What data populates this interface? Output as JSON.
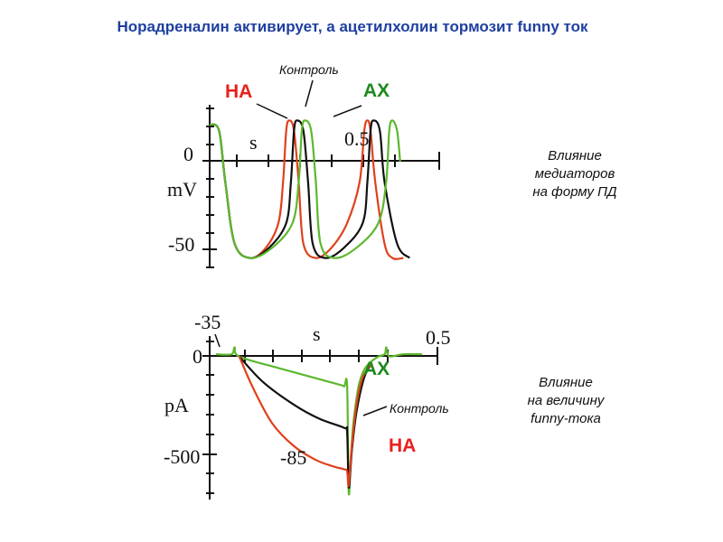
{
  "title": "Норадреналин активирует, а ацетилхолин тормозит funny ток",
  "colors": {
    "title": "#1f3fa0",
    "control": "#111111",
    "na": "#e0401c",
    "ach": "#5cb82e",
    "label_na": "#e8201c",
    "label_ach": "#1d8a1d"
  },
  "chart_data": [
    {
      "type": "line",
      "name": "action-potential",
      "xlabel": "s",
      "ylabel": "mV",
      "x_tick_label": "0.5",
      "y_tick_labels": [
        "0",
        "-50"
      ],
      "xlim": [
        0,
        0.68
      ],
      "ylim": [
        -62,
        15
      ],
      "labels": {
        "control": "Контроль",
        "na": "НА",
        "ach": "АХ"
      },
      "series": [
        {
          "key": "na",
          "x": [
            0.0,
            0.03,
            0.05,
            0.08,
            0.13,
            0.18,
            0.22,
            0.235,
            0.245,
            0.255,
            0.27,
            0.285,
            0.3,
            0.34,
            0.39,
            0.44,
            0.48,
            0.495,
            0.505,
            0.515,
            0.53,
            0.56,
            0.585,
            0.62
          ],
          "y": [
            8,
            5,
            -20,
            -50,
            -57,
            -52,
            -40,
            -20,
            5,
            10,
            5,
            -20,
            -50,
            -57,
            -52,
            -40,
            -20,
            5,
            10,
            5,
            -20,
            -50,
            -57,
            -57
          ]
        },
        {
          "key": "control",
          "x": [
            0.0,
            0.03,
            0.05,
            0.08,
            0.13,
            0.19,
            0.245,
            0.26,
            0.27,
            0.28,
            0.3,
            0.315,
            0.33,
            0.37,
            0.43,
            0.49,
            0.505,
            0.515,
            0.525,
            0.545,
            0.56,
            0.6,
            0.64
          ],
          "y": [
            8,
            5,
            -20,
            -50,
            -57,
            -52,
            -40,
            -20,
            5,
            10,
            5,
            -20,
            -50,
            -57,
            -52,
            -40,
            -20,
            5,
            10,
            5,
            -20,
            -50,
            -57
          ]
        },
        {
          "key": "ach",
          "x": [
            0.0,
            0.03,
            0.05,
            0.08,
            0.13,
            0.2,
            0.265,
            0.285,
            0.295,
            0.305,
            0.325,
            0.34,
            0.355,
            0.4,
            0.47,
            0.54,
            0.565,
            0.575,
            0.585,
            0.6,
            0.61
          ],
          "y": [
            8,
            5,
            -20,
            -50,
            -57,
            -52,
            -40,
            -20,
            5,
            10,
            5,
            -20,
            -50,
            -57,
            -52,
            -40,
            -20,
            5,
            10,
            5,
            -10
          ]
        }
      ]
    },
    {
      "type": "line",
      "name": "funny-current",
      "xlabel": "s",
      "ylabel": "pA",
      "x_tick_label": "0.5",
      "y_tick_labels": [
        "0",
        "-500"
      ],
      "annotations": [
        "-35",
        "-85"
      ],
      "xlim": [
        -0.02,
        0.68
      ],
      "ylim": [
        -640,
        40
      ],
      "labels": {
        "control": "Контроль",
        "na": "НА",
        "ach": "АХ"
      },
      "series": [
        {
          "key": "ach",
          "x": [
            0.0,
            0.05,
            0.06,
            0.075,
            0.2,
            0.39,
            0.41,
            0.42,
            0.425,
            0.432,
            0.44,
            0.455,
            0.47,
            0.49,
            0.52,
            0.54,
            0.545,
            0.55,
            0.56,
            0.6,
            0.66
          ],
          "y": [
            0,
            0,
            30,
            -10,
            -60,
            -130,
            -140,
            -140,
            -600,
            -450,
            -300,
            -150,
            -80,
            -40,
            -10,
            0,
            30,
            0,
            -10,
            0,
            0
          ]
        },
        {
          "key": "control",
          "x": [
            0.075,
            0.15,
            0.25,
            0.33,
            0.41,
            0.42,
            0.425,
            0.435,
            0.45,
            0.475,
            0.5
          ],
          "y": [
            -10,
            -120,
            -220,
            -280,
            -320,
            -340,
            -580,
            -420,
            -250,
            -100,
            -40
          ]
        },
        {
          "key": "na",
          "x": [
            0.075,
            0.12,
            0.18,
            0.25,
            0.32,
            0.38,
            0.41,
            0.42,
            0.425,
            0.435,
            0.45,
            0.47,
            0.5
          ],
          "y": [
            -10,
            -150,
            -300,
            -400,
            -460,
            -490,
            -500,
            -510,
            -570,
            -400,
            -220,
            -100,
            -40
          ]
        }
      ]
    }
  ],
  "captions": {
    "ap": [
      "Влияние",
      "медиаторов",
      "на форму ПД"
    ],
    "funny": [
      "Влияние",
      "на величину",
      "funny-тока"
    ]
  }
}
